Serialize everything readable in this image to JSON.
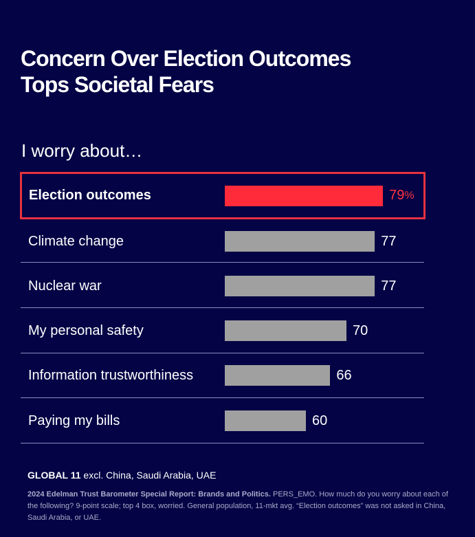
{
  "title_line1": "Concern Over Election Outcomes",
  "title_line2": "Tops Societal Fears",
  "subtitle": "I worry about…",
  "colors": {
    "background": "#030345",
    "highlight": "#ff2a3a",
    "bar": "#a0a0a0",
    "divider": "#8a8fc0"
  },
  "chart_data": {
    "type": "bar",
    "orientation": "horizontal",
    "title": "I worry about…",
    "categories": [
      "Election outcomes",
      "Climate change",
      "Nuclear war",
      "My personal safety",
      "Information trustworthiness",
      "Paying my bills"
    ],
    "values": [
      79,
      77,
      77,
      70,
      66,
      60
    ],
    "value_labels": [
      "79",
      "77",
      "77",
      "70",
      "66",
      "60"
    ],
    "highlighted_index": 0,
    "highlight_suffix": "%",
    "unit": "percent",
    "xlim": [
      40,
      80
    ]
  },
  "footer": {
    "geo_bold": "GLOBAL 11",
    "geo_rest": " excl. China, Saudi Arabia, UAE",
    "source_bold": "2024 Edelman Trust Barometer Special Report: Brands and Politics.",
    "source_rest": " PERS_EMO. How much do you worry about each of the following? 9-point scale; top 4 box, worried. General population, 11-mkt avg. “Election outcomes” was not asked in China, Saudi Arabia, or UAE."
  }
}
